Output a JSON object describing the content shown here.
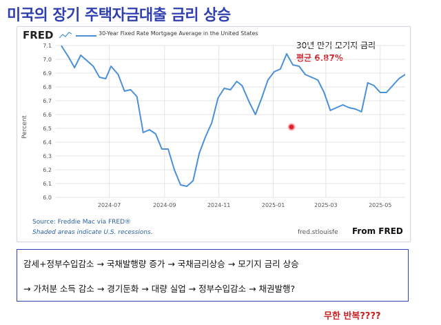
{
  "page": {
    "title": "미국의 장기 주택자금대출 금리 상승",
    "annotation_title": "30년 만기 모기지 금리",
    "annotation_avg": "평균 6.87%",
    "from_fred": "From FRED",
    "flow_line1": "감세+정부수입감소 → 국채발행량 증가 → 국채금리상승 → 모기지 금리 상승",
    "flow_line2": "→  가처분 소득 감소 → 경기둔화 → 대량 실업 → 정부수입감소 → 채권발행?",
    "footnote": "무한 반복????",
    "marker_color": "#e0202a"
  },
  "chart_data": {
    "type": "line",
    "brand": "FRED",
    "title": "30-Year Fixed Rate Mortgage Average in the United States",
    "ylabel": "Percent",
    "xlabel": "",
    "source": "Source: Freddie Mac via FRED®",
    "recession_note": "Shaded areas indicate U.S. recessions.",
    "domain_text": "fred.stlouisfe",
    "ylim": [
      6.0,
      7.1
    ],
    "yticks": [
      "7.1",
      "7.0",
      "6.9",
      "6.8",
      "6.7",
      "6.6",
      "6.5",
      "6.4",
      "6.3",
      "6.2",
      "6.1",
      "6.0"
    ],
    "xticks": [
      {
        "label": "2024-07",
        "date": "2024-07-01"
      },
      {
        "label": "2024-09",
        "date": "2024-09-01"
      },
      {
        "label": "2024-11",
        "date": "2024-11-01"
      },
      {
        "label": "2025-01",
        "date": "2025-01-01"
      },
      {
        "label": "2025-03",
        "date": "2025-03-01"
      },
      {
        "label": "2025-05",
        "date": "2025-05-01"
      }
    ],
    "xlim": [
      "2024-05-02",
      "2025-05-29"
    ],
    "grid": true,
    "line_color": "#4a90d9",
    "series": [
      {
        "x": [
          "2024-05-02",
          "2024-05-09",
          "2024-05-16",
          "2024-05-23",
          "2024-05-30",
          "2024-06-06",
          "2024-06-13",
          "2024-06-20",
          "2024-06-27",
          "2024-07-03",
          "2024-07-11",
          "2024-07-18",
          "2024-07-25",
          "2024-08-01",
          "2024-08-08",
          "2024-08-15",
          "2024-08-22",
          "2024-08-29",
          "2024-09-05",
          "2024-09-12",
          "2024-09-19",
          "2024-09-26",
          "2024-10-03",
          "2024-10-10",
          "2024-10-17",
          "2024-10-24",
          "2024-10-31",
          "2024-11-07",
          "2024-11-14",
          "2024-11-21",
          "2024-11-27",
          "2024-12-05",
          "2024-12-12",
          "2024-12-19",
          "2024-12-26",
          "2025-01-02",
          "2025-01-09",
          "2025-01-16",
          "2025-01-23",
          "2025-01-30",
          "2025-02-06",
          "2025-02-13",
          "2025-02-20",
          "2025-02-27",
          "2025-03-06",
          "2025-03-13",
          "2025-03-20",
          "2025-03-27",
          "2025-04-03",
          "2025-04-10",
          "2025-04-17",
          "2025-04-24",
          "2025-05-01",
          "2025-05-08",
          "2025-05-15",
          "2025-05-22",
          "2025-05-29"
        ],
        "values": [
          7.22,
          7.09,
          7.02,
          6.94,
          7.03,
          6.99,
          6.95,
          6.87,
          6.86,
          6.95,
          6.89,
          6.77,
          6.78,
          6.73,
          6.47,
          6.49,
          6.46,
          6.35,
          6.35,
          6.2,
          6.09,
          6.08,
          6.12,
          6.32,
          6.44,
          6.54,
          6.72,
          6.79,
          6.78,
          6.84,
          6.81,
          6.69,
          6.6,
          6.72,
          6.85,
          6.91,
          6.93,
          7.04,
          6.96,
          6.95,
          6.89,
          6.87,
          6.85,
          6.76,
          6.63,
          6.65,
          6.67,
          6.65,
          6.64,
          6.62,
          6.83,
          6.81,
          6.76,
          6.76,
          6.81,
          6.86,
          6.89
        ]
      }
    ]
  }
}
